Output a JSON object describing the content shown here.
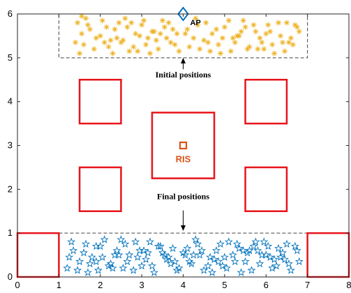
{
  "chart_data": {
    "type": "scatter",
    "title": "",
    "xlabel": "",
    "ylabel": "",
    "xlim": [
      0,
      8
    ],
    "ylim": [
      0,
      6
    ],
    "xticks": [
      "0",
      "1",
      "2",
      "3",
      "4",
      "5",
      "6",
      "7",
      "8"
    ],
    "yticks": [
      "0",
      "1",
      "2",
      "3",
      "4",
      "5",
      "6"
    ],
    "grid": false,
    "colors": {
      "obstacle": "#e8141b",
      "initial": "#edb120",
      "final": "#0072bd",
      "ris": "#d95319",
      "ap": "#0072bd",
      "region_border": "#444444"
    },
    "obstacles": [
      {
        "x": [
          0,
          1
        ],
        "y": [
          0,
          1
        ]
      },
      {
        "x": [
          7,
          8
        ],
        "y": [
          0,
          1
        ]
      },
      {
        "x": [
          1.5,
          2.5
        ],
        "y": [
          1.5,
          2.5
        ]
      },
      {
        "x": [
          5.5,
          6.5
        ],
        "y": [
          1.5,
          2.5
        ]
      },
      {
        "x": [
          1.5,
          2.5
        ],
        "y": [
          3.5,
          4.5
        ]
      },
      {
        "x": [
          5.5,
          6.5
        ],
        "y": [
          3.5,
          4.5
        ]
      },
      {
        "x": [
          3.25,
          4.75
        ],
        "y": [
          2.25,
          3.75
        ]
      }
    ],
    "regions": [
      {
        "name": "initial-region",
        "x": [
          1,
          7
        ],
        "y": [
          5,
          6
        ]
      },
      {
        "name": "final-region",
        "x": [
          1,
          7
        ],
        "y": [
          0,
          1
        ]
      }
    ],
    "ap": {
      "label": "AP",
      "x": 4,
      "y": 6
    },
    "ris": {
      "label": "RIS",
      "x": 4,
      "y": 3
    },
    "annotations": [
      {
        "label": "Initial positions",
        "arrow_from": [
          4,
          4.55
        ],
        "arrow_to": [
          4,
          5.0
        ]
      },
      {
        "label": "Final positions",
        "arrow_from": [
          4,
          1.55
        ],
        "arrow_to": [
          4,
          1.05
        ]
      }
    ],
    "initial_positions": {
      "x": [
        1.45,
        1.55,
        1.6,
        1.5,
        1.7,
        1.9,
        2.05,
        2.2,
        2.35,
        2.5,
        2.6,
        2.7,
        2.85,
        3.0,
        3.1,
        3.25,
        3.4,
        3.5,
        3.6,
        3.75,
        3.9,
        1.65,
        1.85,
        2.0,
        2.15,
        2.3,
        2.45,
        2.55,
        2.8,
        2.95,
        3.05,
        3.2,
        3.35,
        3.55,
        3.7,
        3.85,
        1.4,
        1.75,
        2.1,
        2.4,
        2.65,
        2.9,
        3.15,
        3.45,
        3.65,
        3.8,
        4.1,
        4.25,
        4.4,
        4.55,
        4.7,
        4.85,
        5.0,
        5.15,
        5.3,
        5.45,
        5.6,
        5.75,
        5.9,
        6.05,
        6.2,
        6.35,
        6.5,
        6.65,
        6.8,
        4.15,
        4.35,
        4.5,
        4.65,
        4.8,
        4.95,
        5.1,
        5.25,
        5.4,
        5.55,
        5.7,
        5.85,
        6.0,
        6.15,
        6.3,
        6.45,
        6.6,
        6.75,
        4.05,
        4.3,
        4.6,
        4.9,
        5.2,
        5.5,
        5.8,
        6.1,
        6.4,
        6.7,
        1.55,
        2.25,
        2.75,
        3.3,
        5.35,
        5.95,
        6.55
      ],
      "y": [
        5.8,
        5.55,
        5.3,
        5.1,
        5.75,
        5.45,
        5.85,
        5.25,
        5.65,
        5.35,
        5.9,
        5.15,
        5.55,
        5.75,
        5.3,
        5.6,
        5.2,
        5.85,
        5.45,
        5.65,
        5.15,
        5.9,
        5.2,
        5.5,
        5.7,
        5.1,
        5.8,
        5.4,
        5.25,
        5.5,
        5.85,
        5.1,
        5.4,
        5.7,
        5.35,
        5.55,
        5.35,
        5.65,
        5.35,
        5.45,
        5.7,
        5.15,
        5.45,
        5.55,
        5.8,
        5.3,
        5.65,
        5.45,
        5.2,
        5.8,
        5.55,
        5.3,
        5.7,
        5.15,
        5.5,
        5.85,
        5.25,
        5.6,
        5.35,
        5.75,
        5.1,
        5.5,
        5.8,
        5.3,
        5.6,
        5.25,
        5.75,
        5.4,
        5.15,
        5.65,
        5.45,
        5.85,
        5.35,
        5.6,
        5.2,
        5.75,
        5.45,
        5.55,
        5.3,
        5.8,
        5.15,
        5.45,
        5.7,
        5.55,
        5.9,
        5.35,
        5.1,
        5.45,
        5.7,
        5.2,
        5.6,
        5.35,
        5.75,
        5.95,
        5.4,
        5.8,
        5.6,
        5.5,
        5.2,
        5.35
      ]
    },
    "final_positions": {
      "x": [
        1.2,
        1.35,
        1.5,
        1.65,
        1.8,
        1.95,
        2.1,
        2.25,
        2.4,
        2.55,
        2.7,
        2.85,
        3.0,
        3.15,
        3.3,
        3.45,
        3.6,
        3.75,
        3.9,
        4.05,
        4.2,
        4.35,
        4.5,
        4.65,
        4.8,
        4.95,
        5.1,
        5.25,
        5.4,
        5.55,
        5.7,
        5.85,
        6.0,
        6.15,
        6.3,
        6.45,
        6.6,
        6.75,
        1.25,
        1.45,
        1.6,
        1.75,
        1.9,
        2.05,
        2.2,
        2.35,
        2.5,
        2.65,
        2.8,
        2.95,
        3.1,
        3.25,
        3.4,
        3.55,
        3.7,
        3.85,
        4.0,
        4.15,
        4.3,
        4.45,
        4.6,
        4.75,
        4.9,
        5.05,
        5.2,
        5.35,
        5.5,
        5.65,
        5.8,
        5.95,
        6.1,
        6.25,
        6.4,
        6.55,
        6.7,
        1.3,
        1.7,
        2.0,
        2.3,
        2.6,
        2.9,
        3.2,
        3.5,
        3.8,
        4.1,
        4.4,
        4.7,
        5.0,
        5.3,
        5.6,
        5.9,
        6.2,
        6.5,
        6.8,
        1.9,
        2.45,
        3.05,
        3.65,
        4.25,
        4.85,
        5.45,
        6.05,
        6.35,
        5.75
      ],
      "y": [
        0.2,
        0.6,
        0.35,
        0.75,
        0.45,
        0.15,
        0.85,
        0.3,
        0.6,
        0.2,
        0.5,
        0.8,
        0.25,
        0.55,
        0.1,
        0.7,
        0.4,
        0.65,
        0.2,
        0.5,
        0.3,
        0.75,
        0.15,
        0.45,
        0.6,
        0.25,
        0.8,
        0.35,
        0.1,
        0.55,
        0.7,
        0.3,
        0.5,
        0.2,
        0.65,
        0.4,
        0.15,
        0.6,
        0.45,
        0.15,
        0.55,
        0.3,
        0.7,
        0.45,
        0.25,
        0.5,
        0.85,
        0.35,
        0.15,
        0.6,
        0.4,
        0.25,
        0.7,
        0.5,
        0.3,
        0.15,
        0.55,
        0.35,
        0.85,
        0.6,
        0.25,
        0.4,
        0.75,
        0.2,
        0.5,
        0.65,
        0.35,
        0.15,
        0.6,
        0.8,
        0.45,
        0.25,
        0.55,
        0.3,
        0.7,
        0.8,
        0.1,
        0.7,
        0.2,
        0.75,
        0.45,
        0.8,
        0.55,
        0.35,
        0.65,
        0.5,
        0.1,
        0.45,
        0.75,
        0.6,
        0.5,
        0.4,
        0.75,
        0.35,
        0.35,
        0.5,
        0.6,
        0.45,
        0.5,
        0.35,
        0.6,
        0.7,
        0.45,
        0.8
      ]
    }
  }
}
